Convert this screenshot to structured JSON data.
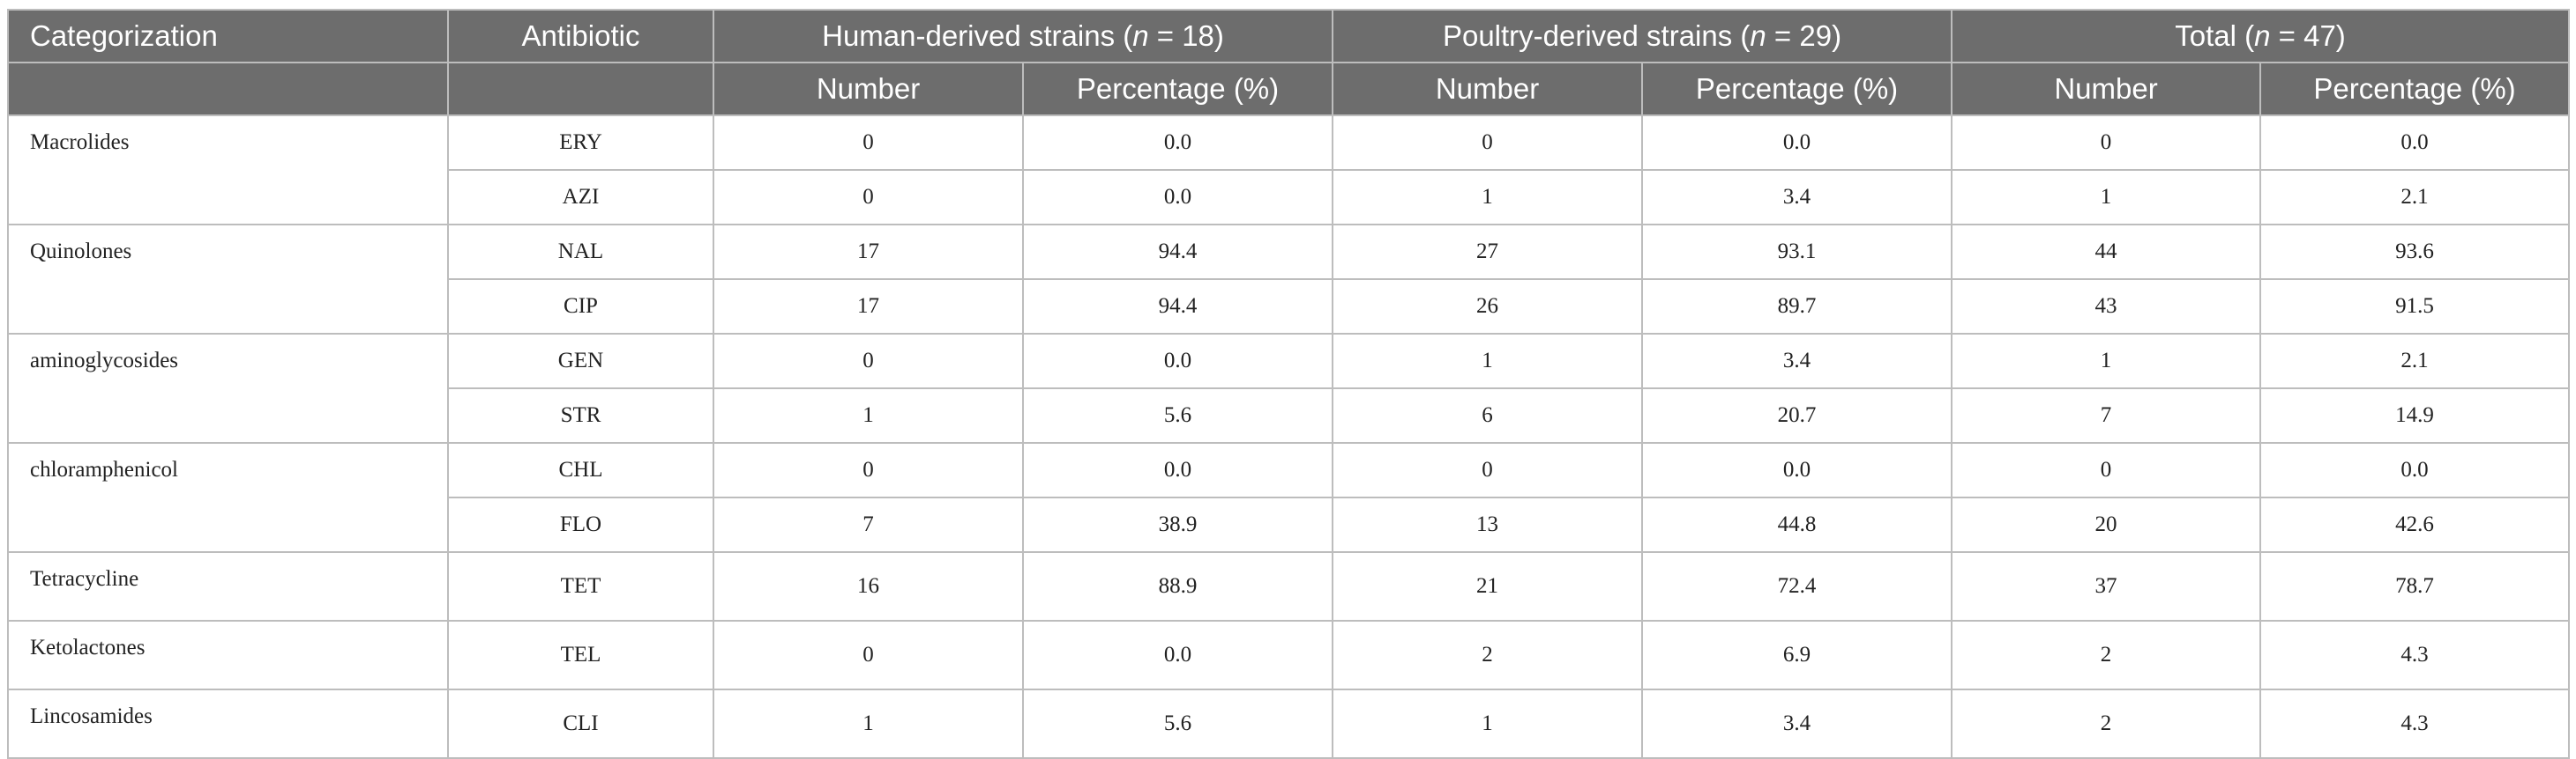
{
  "header": {
    "row1": {
      "categorization": "Categorization",
      "antibiotic": "Antibiotic",
      "human": {
        "prefix": "Human-derived strains (",
        "n": "n",
        "suffix": " = 18)"
      },
      "poultry": {
        "prefix": "Poultry-derived strains (",
        "n": "n",
        "suffix": " = 29)"
      },
      "total": {
        "prefix": "Total (",
        "n": "n",
        "suffix": " = 47)"
      }
    },
    "row2": {
      "human_number": "Number",
      "human_percentage": "Percentage (%)",
      "poultry_number": "Number",
      "poultry_percentage": "Percentage (%)",
      "total_number": "Number",
      "total_percentage": "Percentage (%)"
    }
  },
  "rows": [
    {
      "category": "Macrolides",
      "antibiotic": "ERY",
      "human_number": "0",
      "human_percentage": "0.0",
      "poultry_number": "0",
      "poultry_percentage": "0.0",
      "total_number": "0",
      "total_percentage": "0.0"
    },
    {
      "category": "",
      "antibiotic": "AZI",
      "human_number": "0",
      "human_percentage": "0.0",
      "poultry_number": "1",
      "poultry_percentage": "3.4",
      "total_number": "1",
      "total_percentage": "2.1"
    },
    {
      "category": "Quinolones",
      "antibiotic": "NAL",
      "human_number": "17",
      "human_percentage": "94.4",
      "poultry_number": "27",
      "poultry_percentage": "93.1",
      "total_number": "44",
      "total_percentage": "93.6"
    },
    {
      "category": "",
      "antibiotic": "CIP",
      "human_number": "17",
      "human_percentage": "94.4",
      "poultry_number": "26",
      "poultry_percentage": "89.7",
      "total_number": "43",
      "total_percentage": "91.5"
    },
    {
      "category": "aminoglycosides",
      "antibiotic": "GEN",
      "human_number": "0",
      "human_percentage": "0.0",
      "poultry_number": "1",
      "poultry_percentage": "3.4",
      "total_number": "1",
      "total_percentage": "2.1"
    },
    {
      "category": "",
      "antibiotic": "STR",
      "human_number": "1",
      "human_percentage": "5.6",
      "poultry_number": "6",
      "poultry_percentage": "20.7",
      "total_number": "7",
      "total_percentage": "14.9"
    },
    {
      "category": "chloramphenicol",
      "antibiotic": "CHL",
      "human_number": "0",
      "human_percentage": "0.0",
      "poultry_number": "0",
      "poultry_percentage": "0.0",
      "total_number": "0",
      "total_percentage": "0.0"
    },
    {
      "category": "",
      "antibiotic": "FLO",
      "human_number": "7",
      "human_percentage": "38.9",
      "poultry_number": "13",
      "poultry_percentage": "44.8",
      "total_number": "20",
      "total_percentage": "42.6"
    },
    {
      "category": "Tetracycline",
      "antibiotic": "TET",
      "human_number": "16",
      "human_percentage": "88.9",
      "poultry_number": "21",
      "poultry_percentage": "72.4",
      "total_number": "37",
      "total_percentage": "78.7"
    },
    {
      "category": "Ketolactones",
      "antibiotic": "TEL",
      "human_number": "0",
      "human_percentage": "0.0",
      "poultry_number": "2",
      "poultry_percentage": "6.9",
      "total_number": "2",
      "total_percentage": "4.3"
    },
    {
      "category": "Lincosamides",
      "antibiotic": "CLI",
      "human_number": "1",
      "human_percentage": "5.6",
      "poultry_number": "1",
      "poultry_percentage": "3.4",
      "total_number": "2",
      "total_percentage": "4.3"
    }
  ]
}
